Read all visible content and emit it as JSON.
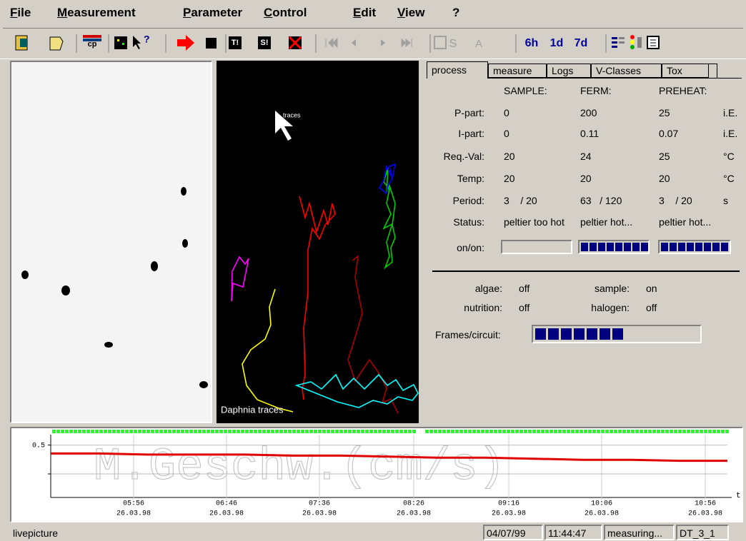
{
  "menu": [
    "File",
    "Measurement",
    "Parameter",
    "Control",
    "Edit",
    "View",
    "?"
  ],
  "toolbar": {
    "buttons": [
      "cp",
      "T!",
      "S!",
      "S",
      "A",
      "6h",
      "1d",
      "7d"
    ]
  },
  "video": {
    "cursor_label": "traces",
    "caption": "Daphnia traces"
  },
  "tabs": [
    "process",
    "measure",
    "Logs",
    "V-Classes",
    "Tox"
  ],
  "process": {
    "columns": [
      "SAMPLE:",
      "FERM:",
      "PREHEAT:"
    ],
    "rows": [
      {
        "label": "P-part:",
        "cells": [
          "0",
          "200",
          "25"
        ],
        "unit": "i.E."
      },
      {
        "label": "I-part:",
        "cells": [
          "0",
          "0.11",
          "0.07"
        ],
        "unit": "i.E."
      },
      {
        "label": "Req.-Val:",
        "cells": [
          "20",
          "24",
          "25"
        ],
        "unit": "°C"
      },
      {
        "label": "Temp:",
        "cells": [
          "20",
          "20",
          "20"
        ],
        "unit": "°C"
      },
      {
        "label": "Period:",
        "cells": [
          "3    / 20",
          "63   / 120",
          "3    / 20"
        ],
        "unit": "s"
      },
      {
        "label": "Status:",
        "cells": [
          "peltier too hot",
          "peltier hot...",
          "peltier hot..."
        ]
      }
    ],
    "onon_label": "on/on:",
    "switches": [
      {
        "label": "algae:",
        "value": "off"
      },
      {
        "label": "sample:",
        "value": "on"
      },
      {
        "label": "nutrition:",
        "value": "off"
      },
      {
        "label": "halogen:",
        "value": "off"
      }
    ],
    "frames_label": "Frames/circuit:"
  },
  "plot": {
    "watermark": "M.Geschw.(cm/s)",
    "x_label": "t",
    "ylim": [
      0,
      0.6
    ],
    "yticks": [
      0.5
    ],
    "xticks": [
      {
        "time": "05:56",
        "date": "26.03.98"
      },
      {
        "time": "06:46",
        "date": "26.03.98"
      },
      {
        "time": "07:36",
        "date": "26.03.98"
      },
      {
        "time": "08:26",
        "date": "26.03.98"
      },
      {
        "time": "09:16",
        "date": "26.03.98"
      },
      {
        "time": "10:06",
        "date": "26.03.98"
      },
      {
        "time": "10:56",
        "date": "26.03.98"
      }
    ],
    "trend": {
      "color": "#e00000",
      "values": [
        0.42,
        0.42,
        0.41,
        0.41,
        0.41,
        0.4,
        0.4,
        0.39,
        0.38,
        0.38,
        0.37,
        0.36,
        0.36,
        0.35,
        0.35
      ]
    }
  },
  "statusbar": {
    "left": "livepicture",
    "fields": [
      "04/07/99",
      "11:44:47",
      "measuring...",
      "DT_3_1"
    ]
  }
}
